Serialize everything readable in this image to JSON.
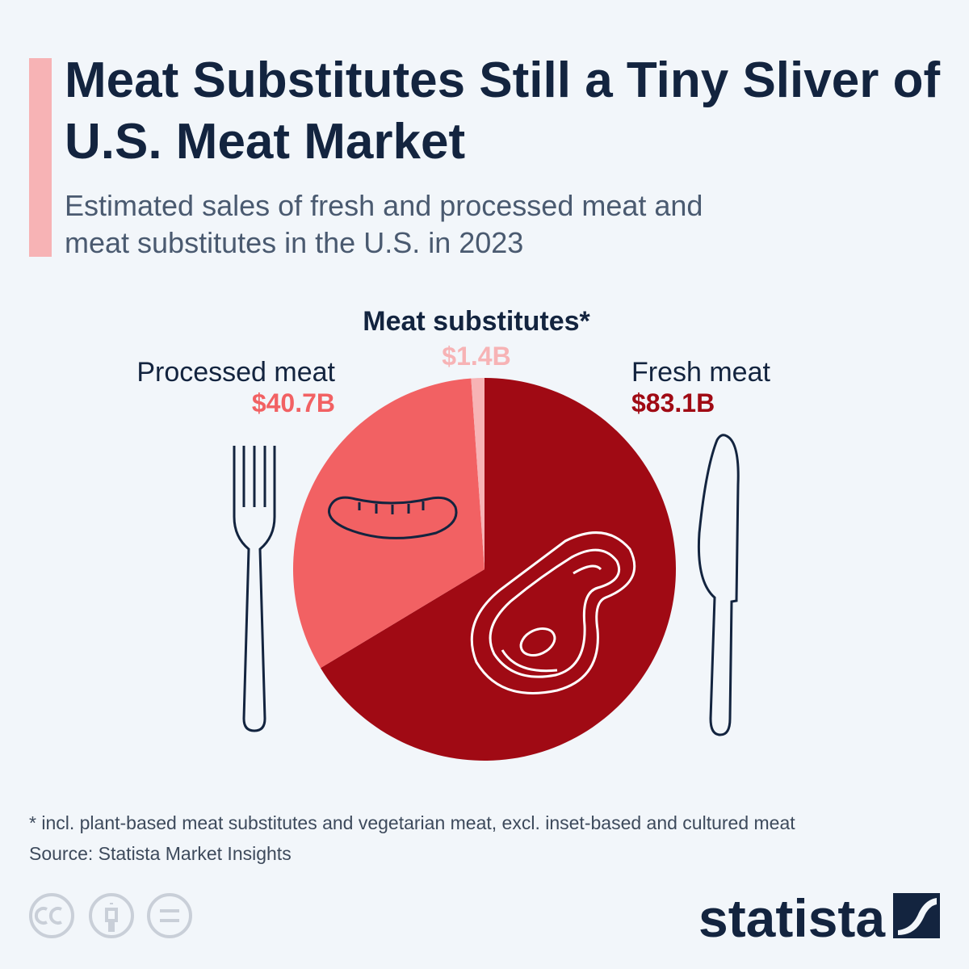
{
  "chart_data": {
    "type": "pie",
    "title": "Meat Substitutes Still a Tiny Sliver of U.S. Meat Market",
    "subtitle": "Estimated sales of fresh and processed meat and meat substitutes in the U.S. in 2023",
    "categories": [
      "Fresh meat",
      "Processed meat",
      "Meat substitutes*"
    ],
    "values": [
      83.1,
      40.7,
      1.4
    ],
    "value_labels": [
      "$83.1B",
      "$40.7B",
      "$1.4B"
    ],
    "colors": [
      "#a00a14",
      "#f26163",
      "#f7b3b5"
    ],
    "footnote": "* incl. plant-based meat substitutes and vegetarian meat, excl. inset-based and cultured meat",
    "source": "Source: Statista Market Insights",
    "brand": "statista"
  }
}
